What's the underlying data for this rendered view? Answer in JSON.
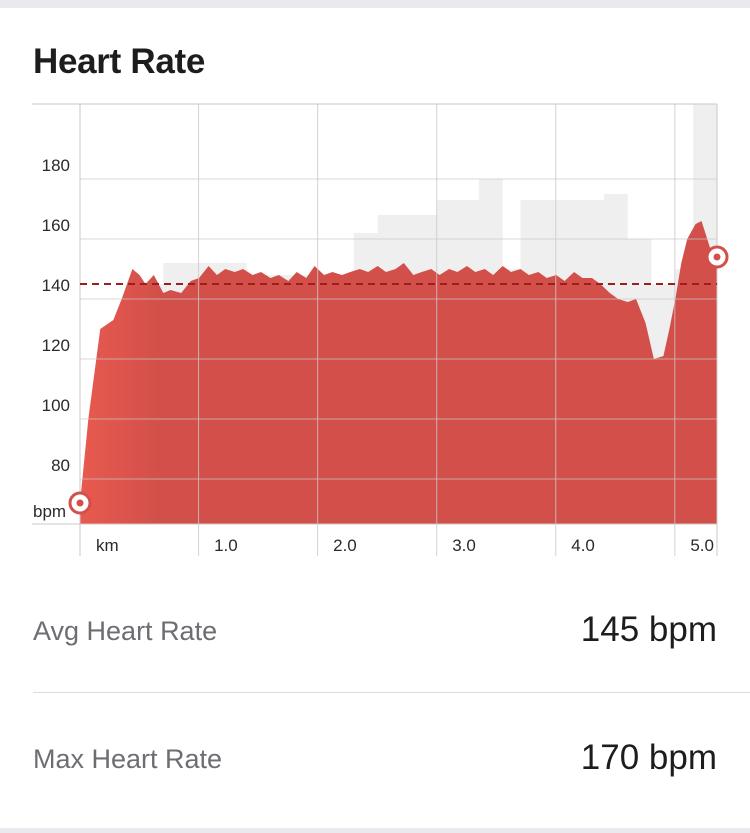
{
  "header": {
    "title": "Heart Rate"
  },
  "stats": [
    {
      "label": "Avg Heart Rate",
      "value": "145 bpm"
    },
    {
      "label": "Max Heart Rate",
      "value": "170 bpm"
    }
  ],
  "colors": {
    "series": "#d3504a",
    "series_start": "#e85a4f",
    "avg_line": "#9b1f1f",
    "background_band": "#efefef",
    "grid": "#c8c8c8"
  },
  "chart_data": {
    "type": "area",
    "xlabel": "km",
    "ylabel": "bpm",
    "xlim": [
      0,
      5.35
    ],
    "ylim": [
      65,
      205
    ],
    "x_ticks": [
      1.0,
      2.0,
      3.0,
      4.0,
      5.0
    ],
    "x_tick_labels": [
      "1.0",
      "2.0",
      "3.0",
      "4.0",
      "5.0"
    ],
    "y_ticks": [
      80,
      100,
      120,
      140,
      160,
      180
    ],
    "y_tick_labels": [
      "80",
      "100",
      "120",
      "140",
      "160",
      "180"
    ],
    "grid": true,
    "average_line": 145,
    "series": [
      {
        "x": [
          0,
          0.07,
          0.17,
          0.28,
          0.35,
          0.44,
          0.5,
          0.55,
          0.62,
          0.7,
          0.76,
          0.85,
          0.93,
          1.0,
          1.08,
          1.15,
          1.22,
          1.3,
          1.37,
          1.45,
          1.52,
          1.6,
          1.67,
          1.75,
          1.82,
          1.9,
          1.97,
          2.05,
          2.12,
          2.2,
          2.27,
          2.35,
          2.42,
          2.5,
          2.57,
          2.65,
          2.72,
          2.8,
          2.87,
          2.95,
          3.02,
          3.1,
          3.17,
          3.25,
          3.32,
          3.4,
          3.47,
          3.55,
          3.62,
          3.7,
          3.77,
          3.85,
          3.92,
          4.0,
          4.07,
          4.15,
          4.22,
          4.3,
          4.37,
          4.45,
          4.52,
          4.6,
          4.67,
          4.75,
          4.82,
          4.9,
          4.95,
          5.0,
          5.05,
          5.1,
          5.17,
          5.22,
          5.3,
          5.35
        ],
        "y": [
          72,
          100,
          130,
          133,
          140,
          150,
          148,
          145,
          148,
          142,
          143,
          142,
          146,
          147,
          151,
          148,
          150,
          149,
          150,
          148,
          149,
          147,
          148,
          146,
          149,
          147,
          151,
          148,
          149,
          148,
          149,
          150,
          149,
          151,
          149,
          150,
          152,
          148,
          149,
          150,
          148,
          150,
          149,
          151,
          149,
          150,
          148,
          151,
          149,
          150,
          148,
          149,
          147,
          148,
          146,
          149,
          147,
          147,
          145,
          142,
          140,
          139,
          140,
          132,
          120,
          121,
          130,
          140,
          152,
          160,
          165,
          166,
          156,
          154
        ]
      },
      {
        "x": [
          0.3,
          0.3,
          0.6,
          0.6,
          0.7,
          0.7,
          1.4,
          1.4,
          2.3,
          2.3,
          2.5,
          2.5,
          3.0,
          3.0,
          3.35,
          3.35,
          3.55,
          3.55,
          3.7,
          3.7,
          4.4,
          4.4,
          4.6,
          4.6,
          4.8,
          4.8,
          5.0,
          5.0,
          5.15,
          5.15,
          5.35
        ],
        "y": [
          65,
          97,
          97,
          145,
          145,
          152,
          152,
          148,
          148,
          162,
          162,
          168,
          168,
          173,
          173,
          180,
          180,
          150,
          150,
          173,
          173,
          175,
          175,
          160,
          160,
          145,
          145,
          150,
          150,
          205,
          205
        ]
      }
    ],
    "start_marker": {
      "x": 0,
      "y": 72
    },
    "end_marker": {
      "x": 5.35,
      "y": 154
    }
  }
}
